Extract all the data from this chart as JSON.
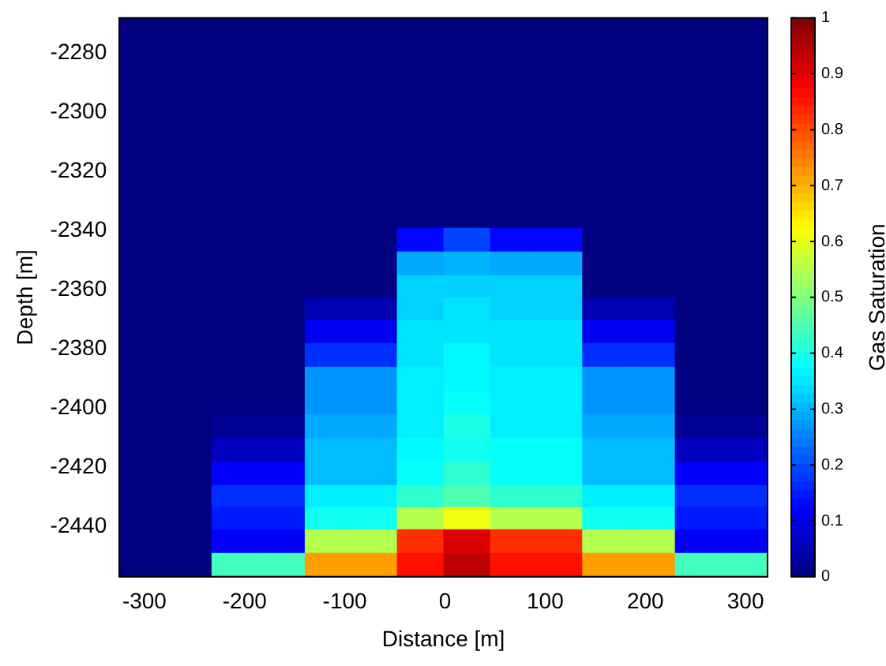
{
  "chart_data": {
    "type": "heatmap",
    "xlabel": "Distance [m]",
    "ylabel": "Depth [m]",
    "clabel": "Gas Saturation",
    "x": [
      -302,
      -256,
      -210,
      -163,
      -117,
      -71,
      -25,
      22,
      68,
      114,
      160,
      206,
      253,
      299
    ],
    "y": [
      -2272,
      -2280,
      -2288,
      -2296,
      -2303,
      -2311,
      -2319,
      -2327,
      -2335,
      -2343,
      -2351,
      -2359,
      -2366,
      -2374,
      -2382,
      -2390,
      -2398,
      -2406,
      -2414,
      -2422,
      -2430,
      -2437,
      -2445,
      -2453
    ],
    "cells": [
      [
        0,
        0,
        0,
        0,
        0,
        0,
        0,
        0,
        0,
        0,
        0,
        0,
        0,
        0
      ],
      [
        0,
        0,
        0,
        0,
        0,
        0,
        0,
        0,
        0,
        0,
        0,
        0,
        0,
        0
      ],
      [
        0,
        0,
        0,
        0,
        0,
        0,
        0,
        0,
        0,
        0,
        0,
        0,
        0,
        0
      ],
      [
        0,
        0,
        0,
        0,
        0,
        0,
        0,
        0,
        0,
        0,
        0,
        0,
        0,
        0
      ],
      [
        0,
        0,
        0,
        0,
        0,
        0,
        0,
        0,
        0,
        0,
        0,
        0,
        0,
        0
      ],
      [
        0,
        0,
        0,
        0,
        0,
        0,
        0,
        0,
        0,
        0,
        0,
        0,
        0,
        0
      ],
      [
        0,
        0,
        0,
        0,
        0,
        0,
        0,
        0,
        0,
        0,
        0,
        0,
        0,
        0
      ],
      [
        0,
        0,
        0,
        0,
        0,
        0,
        0,
        0,
        0,
        0,
        0,
        0,
        0,
        0
      ],
      [
        0,
        0,
        0,
        0,
        0,
        0,
        0,
        0,
        0,
        0,
        0,
        0,
        0,
        0
      ],
      [
        0,
        0,
        0,
        0,
        0,
        0,
        0.13,
        0.19,
        0.13,
        0.13,
        0,
        0,
        0,
        0
      ],
      [
        0,
        0,
        0,
        0,
        0,
        0,
        0.29,
        0.3,
        0.29,
        0.29,
        0,
        0,
        0,
        0
      ],
      [
        0,
        0,
        0,
        0,
        0,
        0,
        0.33,
        0.33,
        0.33,
        0.33,
        0,
        0,
        0,
        0
      ],
      [
        0,
        0,
        0,
        0,
        0.05,
        0.05,
        0.33,
        0.35,
        0.33,
        0.33,
        0.05,
        0.05,
        0,
        0
      ],
      [
        0,
        0,
        0,
        0,
        0.11,
        0.11,
        0.35,
        0.35,
        0.35,
        0.35,
        0.11,
        0.11,
        0,
        0
      ],
      [
        0,
        0,
        0,
        0,
        0.17,
        0.17,
        0.35,
        0.37,
        0.35,
        0.35,
        0.17,
        0.17,
        0,
        0
      ],
      [
        0,
        0,
        0,
        0,
        0.27,
        0.27,
        0.36,
        0.37,
        0.36,
        0.36,
        0.27,
        0.27,
        0,
        0
      ],
      [
        0,
        0,
        0,
        0,
        0.27,
        0.27,
        0.36,
        0.38,
        0.36,
        0.36,
        0.27,
        0.27,
        0,
        0
      ],
      [
        0,
        0,
        0.02,
        0.02,
        0.29,
        0.29,
        0.36,
        0.4,
        0.36,
        0.36,
        0.29,
        0.29,
        0.02,
        0.02
      ],
      [
        0,
        0,
        0.06,
        0.06,
        0.31,
        0.31,
        0.37,
        0.39,
        0.38,
        0.38,
        0.31,
        0.31,
        0.06,
        0.06
      ],
      [
        0,
        0,
        0.12,
        0.12,
        0.31,
        0.31,
        0.38,
        0.42,
        0.38,
        0.38,
        0.31,
        0.31,
        0.12,
        0.12
      ],
      [
        0,
        0,
        0.17,
        0.17,
        0.36,
        0.36,
        0.42,
        0.45,
        0.42,
        0.42,
        0.36,
        0.36,
        0.17,
        0.17
      ],
      [
        0,
        0,
        0.15,
        0.15,
        0.39,
        0.39,
        0.55,
        0.61,
        0.55,
        0.55,
        0.39,
        0.39,
        0.15,
        0.15
      ],
      [
        0,
        0,
        0.12,
        0.12,
        0.55,
        0.55,
        0.83,
        0.91,
        0.83,
        0.83,
        0.55,
        0.55,
        0.12,
        0.12
      ],
      [
        0,
        0,
        0.44,
        0.44,
        0.72,
        0.72,
        0.86,
        0.94,
        0.86,
        0.86,
        0.72,
        0.72,
        0.44,
        0.44
      ]
    ],
    "xlim": [
      -325,
      322
    ],
    "ylim": [
      -2457,
      -2268
    ],
    "xticks": [
      -300,
      -200,
      -100,
      0,
      100,
      200,
      300
    ],
    "yticks": [
      -2440,
      -2420,
      -2400,
      -2380,
      -2360,
      -2340,
      -2320,
      -2300,
      -2280
    ],
    "clim": [
      0,
      1
    ],
    "cticks": [
      0,
      0.1,
      0.2,
      0.3,
      0.4,
      0.5,
      0.6,
      0.7,
      0.8,
      0.9,
      1
    ]
  }
}
